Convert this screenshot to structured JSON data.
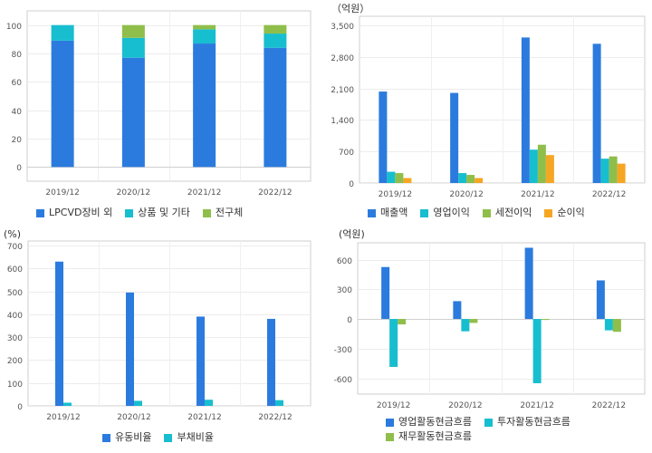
{
  "colors": {
    "blue": "#2b7bde",
    "teal": "#17becf",
    "green": "#8fbe4a",
    "orange": "#f5a623"
  },
  "chart_data": [
    {
      "type": "bar",
      "stacked": true,
      "categories": [
        "2019/12",
        "2020/12",
        "2021/12",
        "2022/12"
      ],
      "series": [
        {
          "name": "LPCVD장비 외",
          "color": "#2b7bde",
          "values": [
            89,
            77,
            87,
            84
          ]
        },
        {
          "name": "상품 및 기타",
          "color": "#17becf",
          "values": [
            11,
            14,
            10,
            10
          ]
        },
        {
          "name": "전구체",
          "color": "#8fbe4a",
          "values": [
            0,
            9,
            3,
            6
          ]
        }
      ],
      "ylim": [
        -10,
        110
      ],
      "yticks": [
        0,
        20,
        40,
        60,
        80,
        100
      ],
      "ytick_labels": [
        "0",
        "20",
        "40",
        "60",
        "80",
        "100"
      ],
      "unit_label": "",
      "grid": true,
      "legend": "bottom"
    },
    {
      "type": "bar",
      "categories": [
        "2019/12",
        "2020/12",
        "2021/12",
        "2022/12"
      ],
      "series": [
        {
          "name": "매출액",
          "color": "#2b7bde",
          "values": [
            2030,
            2000,
            3230,
            3090
          ]
        },
        {
          "name": "영업이익",
          "color": "#17becf",
          "values": [
            250,
            220,
            740,
            540
          ]
        },
        {
          "name": "세전이익",
          "color": "#8fbe4a",
          "values": [
            220,
            180,
            850,
            590
          ]
        },
        {
          "name": "순이익",
          "color": "#f5a623",
          "values": [
            110,
            110,
            620,
            430
          ]
        }
      ],
      "ylim": [
        0,
        3700
      ],
      "yticks": [
        0,
        700,
        1400,
        2100,
        2800,
        3500
      ],
      "ytick_labels": [
        "0",
        "700",
        "1,400",
        "2,100",
        "2,800",
        "3,500"
      ],
      "unit_label": "（억원）",
      "grid": true,
      "legend": "bottom"
    },
    {
      "type": "bar",
      "categories": [
        "2019/12",
        "2020/12",
        "2021/12",
        "2022/12"
      ],
      "series": [
        {
          "name": "유동비율",
          "color": "#2b7bde",
          "values": [
            630,
            495,
            390,
            380
          ]
        },
        {
          "name": "부채비율",
          "color": "#17becf",
          "values": [
            14,
            22,
            27,
            25
          ]
        }
      ],
      "ylim": [
        0,
        720
      ],
      "yticks": [
        0,
        100,
        200,
        300,
        400,
        500,
        600,
        700
      ],
      "ytick_labels": [
        "0",
        "100",
        "200",
        "300",
        "400",
        "500",
        "600",
        "700"
      ],
      "unit_label": "(%)",
      "grid": true,
      "legend": "bottom"
    },
    {
      "type": "bar",
      "categories": [
        "2019/12",
        "2020/12",
        "2021/12",
        "2022/12"
      ],
      "series": [
        {
          "name": "영업활동현금흐름",
          "color": "#2b7bde",
          "values": [
            525,
            180,
            720,
            390
          ]
        },
        {
          "name": "투자활동현금흐름",
          "color": "#17becf",
          "values": [
            -485,
            -125,
            -650,
            -115
          ]
        },
        {
          "name": "재무활동현금흐름",
          "color": "#8fbe4a",
          "values": [
            -55,
            -40,
            -10,
            -130
          ]
        }
      ],
      "ylim": [
        -760,
        770
      ],
      "yticks": [
        -600,
        -300,
        0,
        300,
        600
      ],
      "ytick_labels": [
        "-600",
        "-300",
        "0",
        "300",
        "600"
      ],
      "unit_label": "(억원)",
      "grid": true,
      "legend": "bottom"
    }
  ]
}
